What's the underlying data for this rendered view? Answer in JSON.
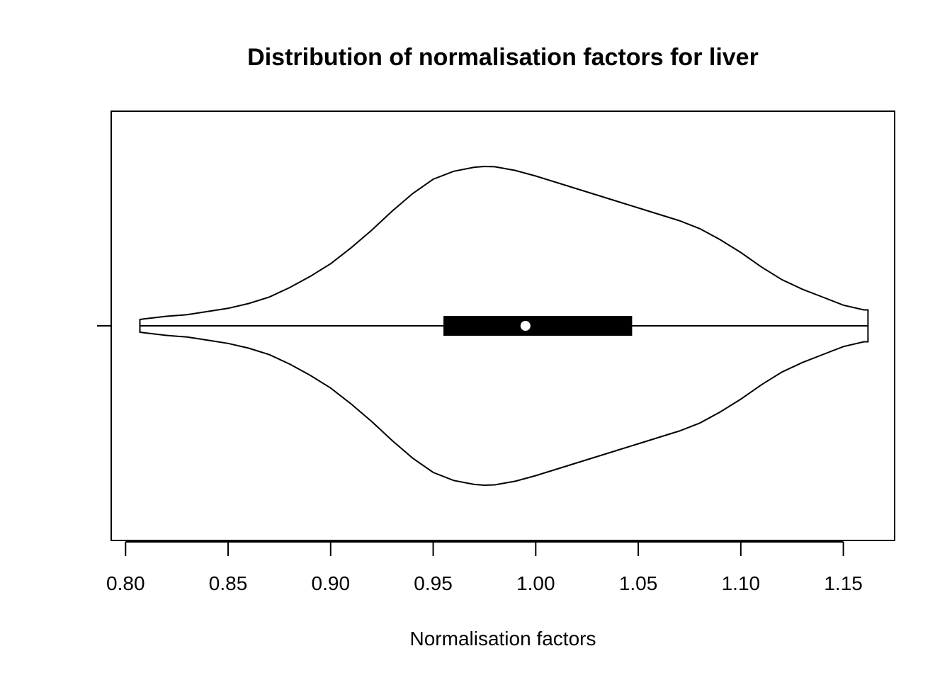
{
  "chart_data": {
    "type": "violin",
    "orientation": "horizontal",
    "title": "Distribution of normalisation factors for liver",
    "xlabel": "Normalisation factors",
    "ylabel": "",
    "xlim": [
      0.793,
      1.175
    ],
    "x_ticks": [
      0.8,
      0.85,
      0.9,
      0.95,
      1.0,
      1.05,
      1.1,
      1.15
    ],
    "x_tick_labels": [
      "0.80",
      "0.85",
      "0.90",
      "0.95",
      "1.00",
      "1.05",
      "1.10",
      "1.15"
    ],
    "grid": false,
    "legend": "none",
    "colors": {
      "outline": "#000000",
      "box": "#000000",
      "median": "#ffffff",
      "background": "#ffffff"
    },
    "summary": {
      "min": 0.807,
      "q1": 0.955,
      "median": 0.995,
      "q3": 1.047,
      "max": 1.162
    },
    "density": {
      "x": [
        0.807,
        0.81,
        0.82,
        0.83,
        0.84,
        0.85,
        0.86,
        0.87,
        0.88,
        0.89,
        0.9,
        0.91,
        0.92,
        0.93,
        0.94,
        0.95,
        0.96,
        0.97,
        0.975,
        0.98,
        0.99,
        1.0,
        1.01,
        1.02,
        1.03,
        1.04,
        1.05,
        1.06,
        1.07,
        1.08,
        1.09,
        1.1,
        1.11,
        1.12,
        1.13,
        1.14,
        1.15,
        1.16,
        1.162
      ],
      "width": [
        0.04,
        0.045,
        0.06,
        0.07,
        0.09,
        0.11,
        0.14,
        0.18,
        0.24,
        0.31,
        0.39,
        0.49,
        0.6,
        0.72,
        0.83,
        0.92,
        0.97,
        0.995,
        1.0,
        0.998,
        0.975,
        0.94,
        0.9,
        0.86,
        0.82,
        0.78,
        0.74,
        0.7,
        0.66,
        0.61,
        0.54,
        0.46,
        0.37,
        0.29,
        0.23,
        0.18,
        0.13,
        0.1,
        0.1
      ]
    }
  }
}
